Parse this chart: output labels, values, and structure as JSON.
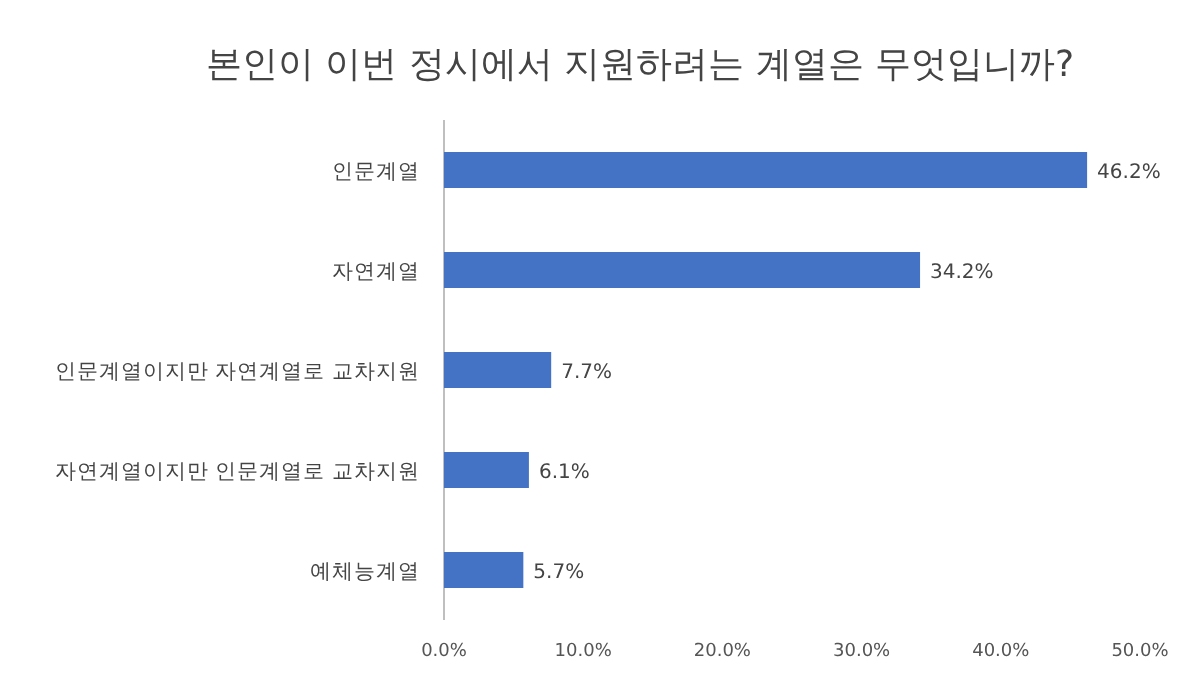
{
  "chart_data": {
    "type": "bar",
    "orientation": "horizontal",
    "title": "본인이 이번 정시에서 지원하려는 계열은 무엇입니까?",
    "categories": [
      "인문계열",
      "자연계열",
      "인문계열이지만 자연계열로 교차지원",
      "자연계열이지만 인문계열로 교차지원",
      "예체능계열"
    ],
    "values": [
      46.2,
      34.2,
      7.7,
      6.1,
      5.7
    ],
    "value_labels": [
      "46.2%",
      "34.2%",
      "7.7%",
      "6.1%",
      "5.7%"
    ],
    "color": "#4472c4",
    "xlim": [
      0,
      50
    ],
    "xticks": [
      {
        "value": 0,
        "label": "0.0%"
      },
      {
        "value": 10,
        "label": "10.0%"
      },
      {
        "value": 20,
        "label": "20.0%"
      },
      {
        "value": 30,
        "label": "30.0%"
      },
      {
        "value": 40,
        "label": "40.0%"
      },
      {
        "value": 50,
        "label": "50.0%"
      }
    ],
    "grid": false
  }
}
